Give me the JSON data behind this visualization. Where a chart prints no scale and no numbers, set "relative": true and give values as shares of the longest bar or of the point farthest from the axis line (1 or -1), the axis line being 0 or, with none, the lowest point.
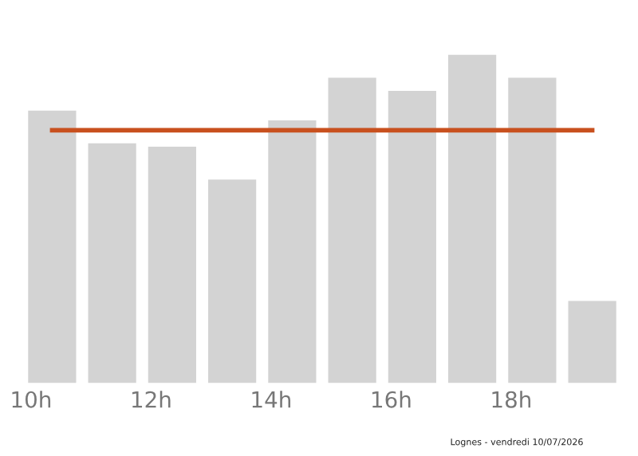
{
  "chart_data": {
    "type": "bar",
    "relative": true,
    "categories": [
      "10h",
      null,
      "12h",
      null,
      "14h",
      null,
      "16h",
      null,
      "18h",
      null
    ],
    "values": [
      0.83,
      0.73,
      0.72,
      0.62,
      0.8,
      0.93,
      0.89,
      1,
      0.93,
      0.25
    ],
    "color": "#d3d3d3",
    "ref_lines": [
      {
        "axis": "y",
        "value": 0.77,
        "color": "#c8501e",
        "line_style": "solid"
      }
    ],
    "annotations": [
      "Lognes - vendredi 10/07/2026"
    ],
    "grid": false,
    "legend": false
  }
}
